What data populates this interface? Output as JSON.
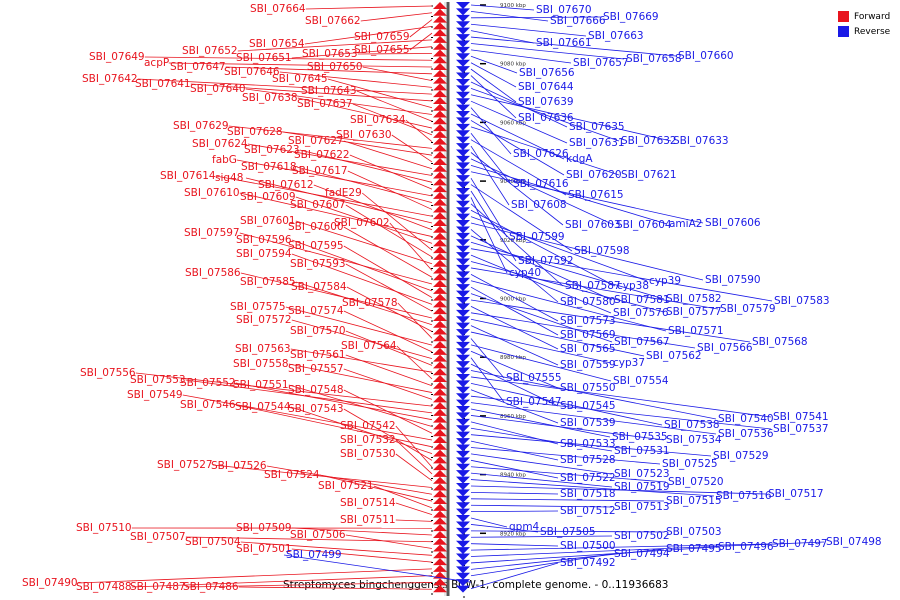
{
  "legend": {
    "forward_label": "Forward",
    "reverse_label": "Reverse",
    "forward_color": "#e8141e",
    "reverse_color": "#1a1ae6"
  },
  "axis_title": "Streptomyces bingchenggensis BCW-1, complete genome. - 0..11936683",
  "scale_labels": [
    "9100 kbp",
    "9080 kbp",
    "9060 kbp",
    "9040 kbp",
    "9020 kbp",
    "9000 kbp",
    "8980 kbp",
    "8960 kbp",
    "8940 kbp",
    "8920 kbp"
  ],
  "forward_genes": [
    "SBI_07664",
    "SBI_07662",
    "SBI_07659",
    "SBI_07654",
    "SBI_07655",
    "SBI_07652",
    "SBI_07651",
    "SBI_07653",
    "SBI_07649",
    "acpP",
    "SBI_07647",
    "SBI_07650",
    "SBI_07646",
    "SBI_07642",
    "SBI_07641",
    "SBI_07645",
    "SBI_07640",
    "SBI_07643",
    "SBI_07638",
    "SBI_07637",
    "SBI_07634",
    "SBI_07629",
    "SBI_07628",
    "SBI_07630",
    "SBI_07627",
    "SBI_07624",
    "SBI_07623",
    "SBI_07622",
    "fabG",
    "SBI_07618",
    "SBI_07617",
    "SBI_07614",
    "sig48",
    "SBI_07612",
    "SBI_07610",
    "SBI_07609",
    "fadE29",
    "SBI_07607",
    "SBI_07601",
    "SBI_07602",
    "SBI_07600",
    "SBI_07597",
    "SBI_07596",
    "SBI_07595",
    "SBI_07594",
    "SBI_07593",
    "SBI_07586",
    "SBI_07585",
    "SBI_07584",
    "SBI_07578",
    "SBI_07575",
    "SBI_07574",
    "SBI_07572",
    "SBI_07570",
    "SBI_07563",
    "SBI_07564",
    "SBI_07561",
    "SBI_07558",
    "SBI_07557",
    "SBI_07556",
    "SBI_07553",
    "SBI_07552",
    "SBI_07551",
    "SBI_07548",
    "SBI_07549",
    "SBI_07546",
    "SBI_07544",
    "SBI_07543",
    "SBI_07542",
    "SBI_07532",
    "SBI_07530",
    "SBI_07527",
    "SBI_07526",
    "SBI_07524",
    "SBI_07521",
    "SBI_07514",
    "SBI_07511",
    "SBI_07510",
    "SBI_07509",
    "SBI_07507",
    "SBI_07506",
    "SBI_07504",
    "SBI_07501",
    "SBI_07490",
    "SBI_07488",
    "SBI_07487",
    "SBI_07486"
  ],
  "reverse_genes": [
    "SBI_07670",
    "SBI_07666",
    "SBI_07669",
    "SBI_07663",
    "SBI_07661",
    "SBI_07660",
    "SBI_07658",
    "SBI_07657",
    "SBI_07656",
    "SBI_07644",
    "SBI_07639",
    "SBI_07636",
    "SBI_07635",
    "SBI_07632",
    "SBI_07633",
    "SBI_07631",
    "SBI_07626",
    "kdgA",
    "SBI_07620",
    "SBI_07621",
    "SBI_07616",
    "SBI_07615",
    "SBI_07608",
    "SBI_07603",
    "SBI_07604",
    "amiA2",
    "SBI_07606",
    "SBI_07599",
    "SBI_07598",
    "SBI_07592",
    "cyp40",
    "SBI_07587",
    "cyp38",
    "cyp39",
    "SBI_07590",
    "SBI_07580",
    "SBI_07581",
    "SBI_07582",
    "SBI_07583",
    "SBI_07576",
    "SBI_07577",
    "SBI_07579",
    "SBI_07573",
    "SBI_07571",
    "SBI_07569",
    "SBI_07567",
    "SBI_07568",
    "SBI_07565",
    "SBI_07566",
    "SBI_07562",
    "SBI_07559",
    "cyp37",
    "SBI_07555",
    "SBI_07554",
    "SBI_07550",
    "SBI_07547",
    "SBI_07545",
    "SBI_07540",
    "SBI_07541",
    "SBI_07538",
    "SBI_07539",
    "SBI_07537",
    "SBI_07536",
    "SBI_07535",
    "SBI_07534",
    "SBI_07533",
    "SBI_07531",
    "SBI_07529",
    "SBI_07528",
    "SBI_07525",
    "SBI_07523",
    "SBI_07522",
    "SBI_07520",
    "SBI_07519",
    "SBI_07516",
    "SBI_07517",
    "SBI_07518",
    "SBI_07515",
    "SBI_07513",
    "SBI_07512",
    "gpm4",
    "SBI_07505",
    "SBI_07503",
    "SBI_07502",
    "SBI_07500",
    "SBI_07497",
    "SBI_07498",
    "SBI_07496",
    "SBI_07495",
    "SBI_07494",
    "SBI_07499",
    "SBI_07492"
  ]
}
